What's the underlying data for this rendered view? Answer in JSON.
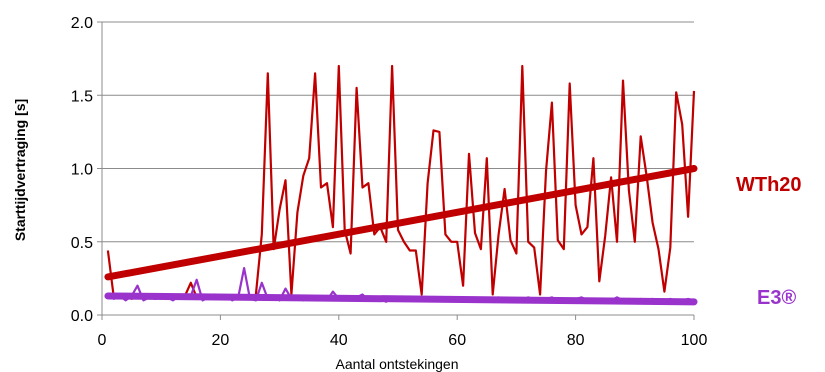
{
  "chart_data": {
    "type": "line",
    "title": "",
    "xlabel": "Aantal ontstekingen",
    "ylabel": "Starttijdvertraging [s]",
    "xlim": [
      0,
      100
    ],
    "ylim": [
      0,
      2
    ],
    "xticks": [
      0,
      20,
      40,
      60,
      80,
      100
    ],
    "yticks": [
      0.0,
      0.5,
      1.0,
      1.5,
      2.0
    ],
    "xtick_labels": [
      "0",
      "20",
      "40",
      "60",
      "80",
      "100"
    ],
    "ytick_labels": [
      "0.0",
      "0.5",
      "1.0",
      "1.5",
      "2.0"
    ],
    "grid": "horizontal",
    "legend": "direct labels at right",
    "series": [
      {
        "name": "WTh20",
        "color": "#c00000",
        "x": [
          1,
          2,
          3,
          4,
          5,
          6,
          7,
          8,
          9,
          10,
          11,
          12,
          13,
          14,
          15,
          16,
          17,
          18,
          19,
          20,
          21,
          22,
          23,
          24,
          25,
          26,
          27,
          28,
          29,
          30,
          31,
          32,
          33,
          34,
          35,
          36,
          37,
          38,
          39,
          40,
          41,
          42,
          43,
          44,
          45,
          46,
          47,
          48,
          49,
          50,
          51,
          52,
          53,
          54,
          55,
          56,
          57,
          58,
          59,
          60,
          61,
          62,
          63,
          64,
          65,
          66,
          67,
          68,
          69,
          70,
          71,
          72,
          73,
          74,
          75,
          76,
          77,
          78,
          79,
          80,
          81,
          82,
          83,
          84,
          85,
          86,
          87,
          88,
          89,
          90,
          91,
          92,
          93,
          94,
          95,
          96,
          97,
          98,
          99,
          100
        ],
        "values": [
          0.44,
          0.12,
          0.12,
          0.14,
          0.11,
          0.13,
          0.12,
          0.14,
          0.11,
          0.13,
          0.14,
          0.12,
          0.11,
          0.13,
          0.22,
          0.12,
          0.13,
          0.11,
          0.14,
          0.12,
          0.13,
          0.12,
          0.11,
          0.13,
          0.12,
          0.14,
          0.55,
          1.65,
          0.45,
          0.72,
          0.92,
          0.14,
          0.7,
          0.95,
          1.07,
          1.65,
          0.87,
          0.9,
          0.6,
          1.7,
          0.58,
          0.42,
          1.55,
          0.87,
          0.9,
          0.55,
          0.6,
          0.5,
          1.7,
          0.58,
          0.5,
          0.44,
          0.44,
          0.14,
          0.9,
          1.26,
          1.25,
          0.55,
          0.5,
          0.5,
          0.2,
          1.1,
          0.56,
          0.45,
          1.07,
          0.14,
          0.55,
          0.86,
          0.51,
          0.42,
          1.7,
          0.5,
          0.46,
          0.14,
          0.98,
          1.45,
          0.51,
          0.45,
          1.58,
          0.75,
          0.55,
          0.6,
          1.07,
          0.23,
          0.54,
          0.94,
          0.5,
          1.6,
          0.85,
          0.5,
          1.22,
          0.95,
          0.63,
          0.45,
          0.16,
          0.46,
          1.52,
          1.3,
          0.67,
          1.53
        ]
      },
      {
        "name": "E3®",
        "color": "#9933cc",
        "x": [
          1,
          2,
          3,
          4,
          5,
          6,
          7,
          8,
          9,
          10,
          11,
          12,
          13,
          14,
          15,
          16,
          17,
          18,
          19,
          20,
          21,
          22,
          23,
          24,
          25,
          26,
          27,
          28,
          29,
          30,
          31,
          32,
          33,
          34,
          35,
          36,
          37,
          38,
          39,
          40,
          41,
          42,
          43,
          44,
          45,
          46,
          47,
          48,
          49,
          50,
          51,
          52,
          53,
          54,
          55,
          56,
          57,
          58,
          59,
          60,
          61,
          62,
          63,
          64,
          65,
          66,
          67,
          68,
          69,
          70,
          71,
          72,
          73,
          74,
          75,
          76,
          77,
          78,
          79,
          80,
          81,
          82,
          83,
          84,
          85,
          86,
          87,
          88,
          89,
          90,
          91,
          92,
          93,
          94,
          95,
          96,
          97,
          98,
          99,
          100
        ],
        "values": [
          0.14,
          0.11,
          0.13,
          0.1,
          0.13,
          0.2,
          0.1,
          0.12,
          0.11,
          0.13,
          0.12,
          0.1,
          0.13,
          0.11,
          0.13,
          0.24,
          0.1,
          0.12,
          0.14,
          0.11,
          0.13,
          0.1,
          0.12,
          0.32,
          0.11,
          0.1,
          0.22,
          0.11,
          0.13,
          0.1,
          0.18,
          0.11,
          0.12,
          0.1,
          0.13,
          0.11,
          0.12,
          0.1,
          0.16,
          0.11,
          0.12,
          0.1,
          0.12,
          0.14,
          0.1,
          0.12,
          0.11,
          0.09,
          0.12,
          0.1,
          0.11,
          0.12,
          0.1,
          0.11,
          0.12,
          0.1,
          0.11,
          0.1,
          0.12,
          0.11,
          0.1,
          0.11,
          0.12,
          0.1,
          0.11,
          0.1,
          0.12,
          0.11,
          0.1,
          0.11,
          0.1,
          0.12,
          0.11,
          0.1,
          0.11,
          0.12,
          0.1,
          0.11,
          0.1,
          0.11,
          0.12,
          0.1,
          0.11,
          0.1,
          0.11,
          0.1,
          0.12,
          0.1,
          0.11,
          0.1,
          0.11,
          0.1,
          0.11,
          0.1,
          0.1,
          0.11,
          0.1,
          0.1,
          0.11,
          0.1
        ]
      }
    ],
    "trendlines": [
      {
        "series": "WTh20",
        "x": [
          1,
          100
        ],
        "values": [
          0.26,
          1.0
        ],
        "color": "#c00000"
      },
      {
        "series": "E3®",
        "x": [
          1,
          100
        ],
        "values": [
          0.13,
          0.09
        ],
        "color": "#9933cc"
      }
    ]
  }
}
